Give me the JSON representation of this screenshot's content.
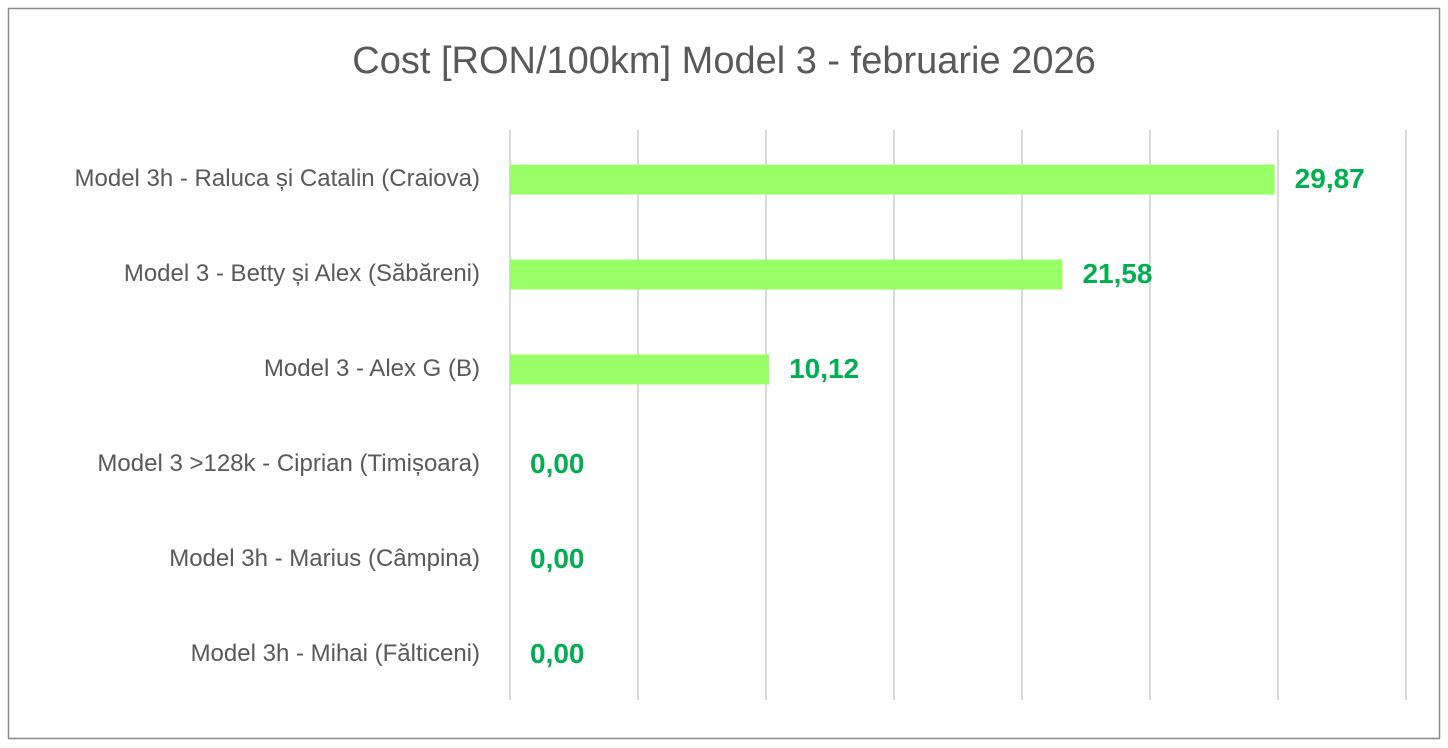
{
  "chart_data": {
    "type": "bar",
    "orientation": "horizontal",
    "title": "Cost [RON/100km] Model 3 - februarie 2026",
    "categories": [
      "Model 3h - Raluca și Catalin (Craiova)",
      "Model 3 - Betty și Alex (Săbăreni)",
      "Model 3 - Alex G (B)",
      "Model 3 >128k - Ciprian (Timișoara)",
      "Model 3h - Marius (Câmpina)",
      "Model 3h - Mihai (Fălticeni)"
    ],
    "values": [
      29.87,
      21.58,
      10.12,
      0,
      0,
      0
    ],
    "value_labels": [
      "29,87",
      "21,58",
      "10,12",
      "0,00",
      "0,00",
      "0,00"
    ],
    "color": "#99ff66",
    "label_color": "#00b050",
    "xlim": [
      0,
      35
    ],
    "xticks": [
      0,
      5,
      10,
      15,
      20,
      25,
      30,
      35
    ],
    "grid": true
  }
}
